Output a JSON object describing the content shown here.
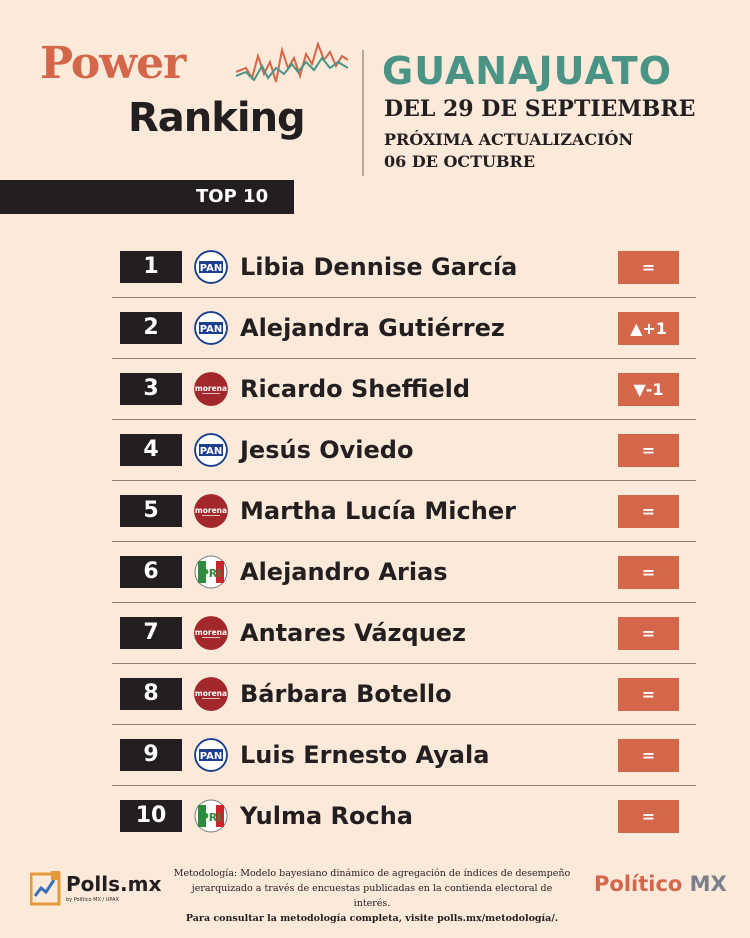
{
  "header": {
    "title_power": "Power",
    "title_ranking": "Ranking",
    "state": "GUANAJUATO",
    "date_line": "DEL 29 DE SEPTIEMBRE",
    "next_update_label": "PRÓXIMA ACTUALIZACIÓN",
    "next_update_date": "06 DE OCTUBRE"
  },
  "section": {
    "label": "TOP 10"
  },
  "rankings": [
    {
      "rank": "1",
      "party": "PAN",
      "name": "Libia Dennise García",
      "change": "="
    },
    {
      "rank": "2",
      "party": "PAN",
      "name": "Alejandra Gutiérrez",
      "change": "▲+1"
    },
    {
      "rank": "3",
      "party": "morena",
      "name": "Ricardo Sheffield",
      "change": "▼-1"
    },
    {
      "rank": "4",
      "party": "PAN",
      "name": "Jesús Oviedo",
      "change": "="
    },
    {
      "rank": "5",
      "party": "morena",
      "name": "Martha Lucía Micher",
      "change": "="
    },
    {
      "rank": "6",
      "party": "PRI",
      "name": "Alejandro Arias",
      "change": "="
    },
    {
      "rank": "7",
      "party": "morena",
      "name": "Antares Vázquez",
      "change": "="
    },
    {
      "rank": "8",
      "party": "morena",
      "name": "Bárbara Botello",
      "change": "="
    },
    {
      "rank": "9",
      "party": "PAN",
      "name": "Luis Ernesto Ayala",
      "change": "="
    },
    {
      "rank": "10",
      "party": "PRI",
      "name": "Yulma Rocha",
      "change": "="
    }
  ],
  "footer": {
    "polls_brand": "Polls.mx",
    "polls_sub": "by Político MX / UPAX",
    "methodology_line1": "Metodología: Modelo bayesiano dinámico de agregación de índices de desempeño",
    "methodology_line2": "jerarquizado a través de encuestas publicadas en la contienda electoral de interés.",
    "methodology_line3": "Para consultar la metodología completa, visite polls.mx/metodología/.",
    "politico_a": "Político",
    "politico_b": " MX"
  },
  "colors": {
    "background": "#fbe9da",
    "accent": "#d4664a",
    "teal": "#4a9486",
    "dark": "#231f20",
    "pan_blue": "#1d3f8f",
    "morena_red": "#a3282b"
  },
  "icons": {
    "PAN": "pan-logo-icon",
    "morena": "morena-logo-icon",
    "PRI": "pri-logo-icon"
  }
}
